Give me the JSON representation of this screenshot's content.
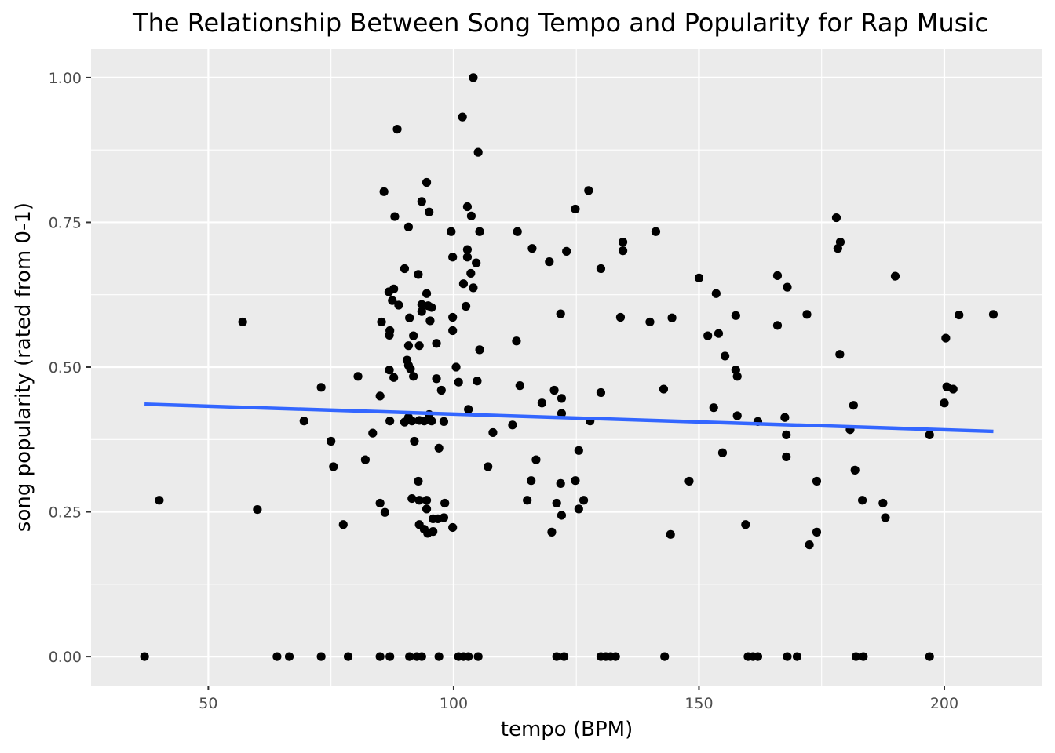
{
  "chart_data": {
    "type": "scatter",
    "title": "The Relationship Between Song Tempo and Popularity for Rap Music",
    "xlabel": "tempo (BPM)",
    "ylabel": "song popularity (rated from 0-1)",
    "xlim": [
      26.1,
      220.0
    ],
    "ylim": [
      -0.05,
      1.05
    ],
    "x_ticks": [
      50,
      100,
      150,
      200
    ],
    "x_tick_labels": [
      "50",
      "100",
      "150",
      "200"
    ],
    "y_ticks": [
      0,
      0.25,
      0.5,
      0.75,
      1
    ],
    "y_tick_labels": [
      "0.00",
      "0.25",
      "0.50",
      "0.75",
      "1.00"
    ],
    "grid": true,
    "colors": {
      "panel": "#ebebeb",
      "grid": "#ffffff",
      "point": "#000000",
      "trend": "#3366ff"
    },
    "trend_line": {
      "x": [
        37.0,
        210.0
      ],
      "y": [
        0.436,
        0.389
      ]
    },
    "points": [
      [
        37.0,
        0.0
      ],
      [
        64.0,
        0.0
      ],
      [
        66.5,
        0.0
      ],
      [
        73.0,
        0.0
      ],
      [
        78.5,
        0.0
      ],
      [
        85.0,
        0.0
      ],
      [
        87.0,
        0.0
      ],
      [
        91.0,
        0.0
      ],
      [
        92.5,
        0.0
      ],
      [
        93.5,
        0.0
      ],
      [
        97.0,
        0.0
      ],
      [
        101.0,
        0.0
      ],
      [
        102.0,
        0.0
      ],
      [
        103.0,
        0.0
      ],
      [
        105.0,
        0.0
      ],
      [
        121.0,
        0.0
      ],
      [
        122.5,
        0.0
      ],
      [
        130.0,
        0.0
      ],
      [
        131.0,
        0.0
      ],
      [
        132.0,
        0.0
      ],
      [
        133.0,
        0.0
      ],
      [
        143.0,
        0.0
      ],
      [
        160.0,
        0.0
      ],
      [
        161.0,
        0.0
      ],
      [
        162.0,
        0.0
      ],
      [
        168.0,
        0.0
      ],
      [
        170.0,
        0.0
      ],
      [
        182.0,
        0.0
      ],
      [
        183.5,
        0.0
      ],
      [
        197.0,
        0.0
      ],
      [
        40.0,
        0.27
      ],
      [
        57.0,
        0.578
      ],
      [
        60.0,
        0.254
      ],
      [
        69.5,
        0.407
      ],
      [
        73.0,
        0.465
      ],
      [
        75.0,
        0.372
      ],
      [
        75.5,
        0.328
      ],
      [
        77.5,
        0.228
      ],
      [
        80.5,
        0.484
      ],
      [
        82.0,
        0.34
      ],
      [
        83.5,
        0.386
      ],
      [
        85.0,
        0.45
      ],
      [
        85.0,
        0.265
      ],
      [
        85.3,
        0.578
      ],
      [
        85.8,
        0.803
      ],
      [
        86.0,
        0.249
      ],
      [
        86.8,
        0.63
      ],
      [
        86.9,
        0.555
      ],
      [
        86.9,
        0.495
      ],
      [
        87.0,
        0.563
      ],
      [
        87.0,
        0.407
      ],
      [
        87.5,
        0.615
      ],
      [
        87.8,
        0.482
      ],
      [
        87.8,
        0.635
      ],
      [
        88.0,
        0.76
      ],
      [
        88.5,
        0.911
      ],
      [
        88.8,
        0.607
      ],
      [
        90.0,
        0.67
      ],
      [
        90.0,
        0.405
      ],
      [
        90.5,
        0.512
      ],
      [
        90.8,
        0.503
      ],
      [
        90.8,
        0.537
      ],
      [
        90.8,
        0.413
      ],
      [
        90.8,
        0.742
      ],
      [
        91.0,
        0.585
      ],
      [
        91.2,
        0.497
      ],
      [
        91.5,
        0.407
      ],
      [
        91.5,
        0.273
      ],
      [
        91.8,
        0.554
      ],
      [
        91.8,
        0.484
      ],
      [
        92.0,
        0.372
      ],
      [
        92.8,
        0.66
      ],
      [
        92.8,
        0.303
      ],
      [
        93.0,
        0.228
      ],
      [
        93.0,
        0.27
      ],
      [
        93.0,
        0.537
      ],
      [
        93.0,
        0.408
      ],
      [
        93.5,
        0.596
      ],
      [
        93.5,
        0.786
      ],
      [
        93.5,
        0.608
      ],
      [
        94.0,
        0.22
      ],
      [
        94.0,
        0.407
      ],
      [
        94.5,
        0.627
      ],
      [
        94.5,
        0.819
      ],
      [
        94.5,
        0.255
      ],
      [
        94.5,
        0.27
      ],
      [
        94.7,
        0.213
      ],
      [
        94.8,
        0.606
      ],
      [
        95.0,
        0.768
      ],
      [
        95.0,
        0.418
      ],
      [
        95.2,
        0.58
      ],
      [
        95.5,
        0.603
      ],
      [
        95.5,
        0.407
      ],
      [
        95.8,
        0.238
      ],
      [
        95.8,
        0.216
      ],
      [
        96.5,
        0.541
      ],
      [
        96.5,
        0.48
      ],
      [
        96.8,
        0.238
      ],
      [
        97.0,
        0.36
      ],
      [
        97.5,
        0.46
      ],
      [
        98.0,
        0.24
      ],
      [
        98.0,
        0.406
      ],
      [
        98.2,
        0.265
      ],
      [
        99.5,
        0.734
      ],
      [
        99.8,
        0.69
      ],
      [
        99.8,
        0.586
      ],
      [
        99.8,
        0.563
      ],
      [
        99.8,
        0.223
      ],
      [
        100.5,
        0.5
      ],
      [
        101.0,
        0.474
      ],
      [
        101.8,
        0.932
      ],
      [
        102.0,
        0.644
      ],
      [
        102.5,
        0.605
      ],
      [
        102.8,
        0.69
      ],
      [
        102.8,
        0.703
      ],
      [
        102.8,
        0.777
      ],
      [
        103.0,
        0.427
      ],
      [
        103.5,
        0.662
      ],
      [
        103.6,
        0.761
      ],
      [
        104.0,
        1.0
      ],
      [
        104.0,
        0.637
      ],
      [
        104.6,
        0.68
      ],
      [
        104.8,
        0.476
      ],
      [
        105.0,
        0.871
      ],
      [
        105.3,
        0.734
      ],
      [
        105.3,
        0.53
      ],
      [
        107.0,
        0.328
      ],
      [
        108.0,
        0.387
      ],
      [
        112.0,
        0.4
      ],
      [
        112.8,
        0.545
      ],
      [
        113.0,
        0.734
      ],
      [
        113.5,
        0.468
      ],
      [
        115.0,
        0.27
      ],
      [
        115.8,
        0.304
      ],
      [
        116.0,
        0.705
      ],
      [
        116.8,
        0.34
      ],
      [
        118.0,
        0.438
      ],
      [
        119.5,
        0.682
      ],
      [
        120.0,
        0.215
      ],
      [
        120.5,
        0.46
      ],
      [
        121.0,
        0.265
      ],
      [
        121.8,
        0.299
      ],
      [
        121.8,
        0.592
      ],
      [
        122.0,
        0.446
      ],
      [
        122.0,
        0.42
      ],
      [
        122.0,
        0.244
      ],
      [
        123.0,
        0.7
      ],
      [
        124.8,
        0.773
      ],
      [
        124.8,
        0.304
      ],
      [
        125.5,
        0.356
      ],
      [
        125.5,
        0.255
      ],
      [
        126.5,
        0.27
      ],
      [
        127.5,
        0.805
      ],
      [
        127.8,
        0.407
      ],
      [
        130.0,
        0.67
      ],
      [
        130.0,
        0.456
      ],
      [
        134.0,
        0.586
      ],
      [
        134.5,
        0.716
      ],
      [
        134.5,
        0.701
      ],
      [
        140.0,
        0.578
      ],
      [
        141.2,
        0.734
      ],
      [
        142.8,
        0.462
      ],
      [
        144.2,
        0.211
      ],
      [
        144.5,
        0.585
      ],
      [
        148.0,
        0.303
      ],
      [
        150.0,
        0.654
      ],
      [
        151.8,
        0.554
      ],
      [
        153.0,
        0.43
      ],
      [
        153.5,
        0.627
      ],
      [
        154.0,
        0.558
      ],
      [
        154.8,
        0.352
      ],
      [
        155.3,
        0.519
      ],
      [
        157.5,
        0.589
      ],
      [
        157.5,
        0.495
      ],
      [
        157.8,
        0.484
      ],
      [
        157.8,
        0.416
      ],
      [
        159.5,
        0.228
      ],
      [
        162.0,
        0.406
      ],
      [
        166.0,
        0.658
      ],
      [
        166.0,
        0.572
      ],
      [
        167.5,
        0.413
      ],
      [
        167.8,
        0.383
      ],
      [
        167.8,
        0.345
      ],
      [
        168.0,
        0.638
      ],
      [
        172.0,
        0.591
      ],
      [
        172.5,
        0.193
      ],
      [
        174.0,
        0.303
      ],
      [
        174.0,
        0.215
      ],
      [
        178.0,
        0.758
      ],
      [
        178.3,
        0.705
      ],
      [
        178.7,
        0.522
      ],
      [
        178.8,
        0.716
      ],
      [
        180.8,
        0.392
      ],
      [
        181.5,
        0.434
      ],
      [
        181.8,
        0.322
      ],
      [
        183.3,
        0.27
      ],
      [
        187.5,
        0.265
      ],
      [
        188.0,
        0.24
      ],
      [
        190.0,
        0.657
      ],
      [
        197.0,
        0.383
      ],
      [
        200.0,
        0.438
      ],
      [
        200.3,
        0.55
      ],
      [
        200.5,
        0.466
      ],
      [
        201.8,
        0.462
      ],
      [
        203.0,
        0.59
      ],
      [
        210.0,
        0.591
      ]
    ]
  }
}
